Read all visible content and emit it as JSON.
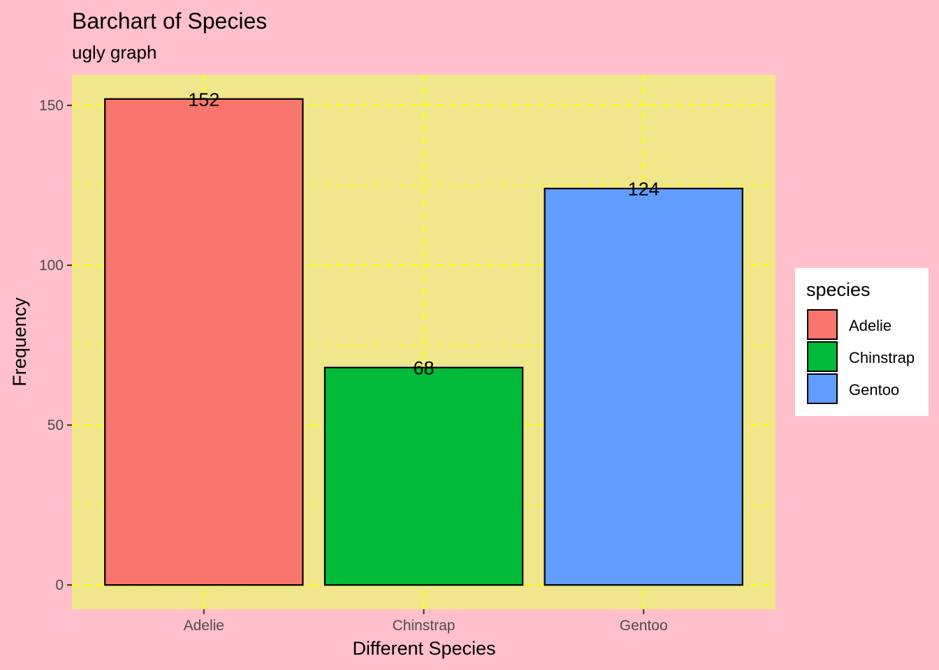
{
  "colors": {
    "plot_background": "#ffc0cb",
    "panel_background": "#f0e68c",
    "grid": "#ffff00",
    "bar_outline": "#000000",
    "tick": "#333333"
  },
  "chart_data": {
    "type": "bar",
    "title": "Barchart of Species",
    "subtitle": "ugly graph",
    "xlabel": "Different Species",
    "ylabel": "Frequency",
    "categories": [
      "Adelie",
      "Chinstrap",
      "Gentoo"
    ],
    "values": [
      152,
      68,
      124
    ],
    "data_labels": [
      "152",
      "68",
      "124"
    ],
    "colors": [
      "#f8766d",
      "#00ba38",
      "#619cff"
    ],
    "ylim": [
      -7.6,
      159.6
    ],
    "yticks": [
      0,
      50,
      100,
      150
    ],
    "ytick_labels": [
      "0",
      "50",
      "100",
      "150"
    ],
    "grid": true,
    "grid_style": "dashed",
    "legend": {
      "title": "species",
      "entries": [
        "Adelie",
        "Chinstrap",
        "Gentoo"
      ],
      "placement": "right"
    }
  }
}
